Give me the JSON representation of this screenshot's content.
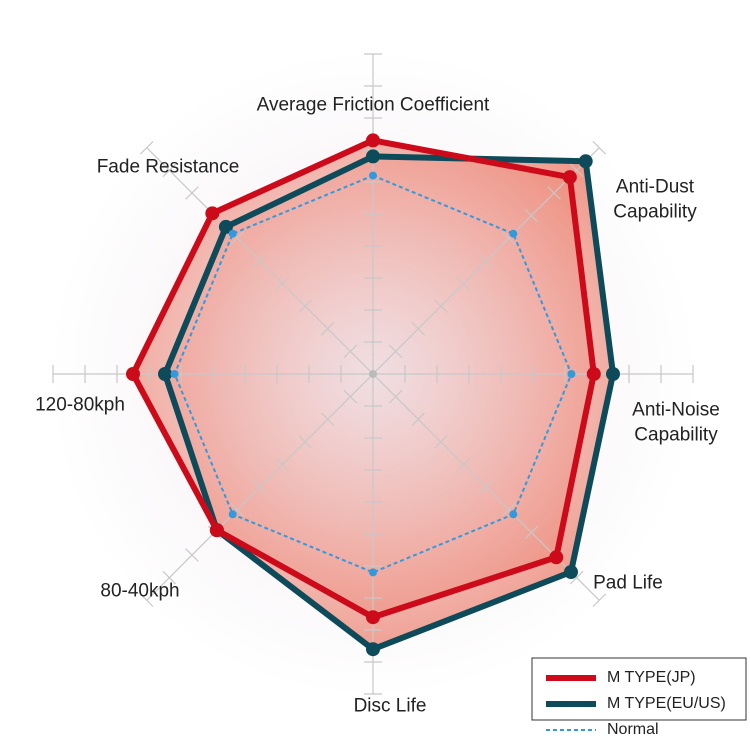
{
  "chart_data": {
    "type": "radar",
    "categories": [
      "Average Friction Coefficient",
      "Anti-Dust Capability",
      "Anti-Noise Capability",
      "Pad Life",
      "Disc Life",
      "80-40kph",
      "120-80kph",
      "Fade Resistance"
    ],
    "rlim": [
      0,
      10
    ],
    "rticks": [
      1,
      2,
      3,
      4,
      5,
      6,
      7,
      8,
      9,
      10
    ],
    "legend": "bottom-right",
    "series": [
      {
        "name": "M TYPE(JP)",
        "color": "#cc0a1a",
        "values": [
          7.3,
          8.7,
          6.9,
          8.1,
          7.6,
          6.9,
          7.5,
          7.1
        ]
      },
      {
        "name": "M TYPE(EU/US)",
        "color": "#0d4a5a",
        "values": [
          6.8,
          9.4,
          7.5,
          8.75,
          8.6,
          6.9,
          6.5,
          6.5
        ]
      },
      {
        "name": "Normal",
        "color": "#3399dd",
        "values": [
          6.2,
          6.2,
          6.2,
          6.2,
          6.2,
          6.2,
          6.2,
          6.2
        ]
      }
    ]
  }
}
